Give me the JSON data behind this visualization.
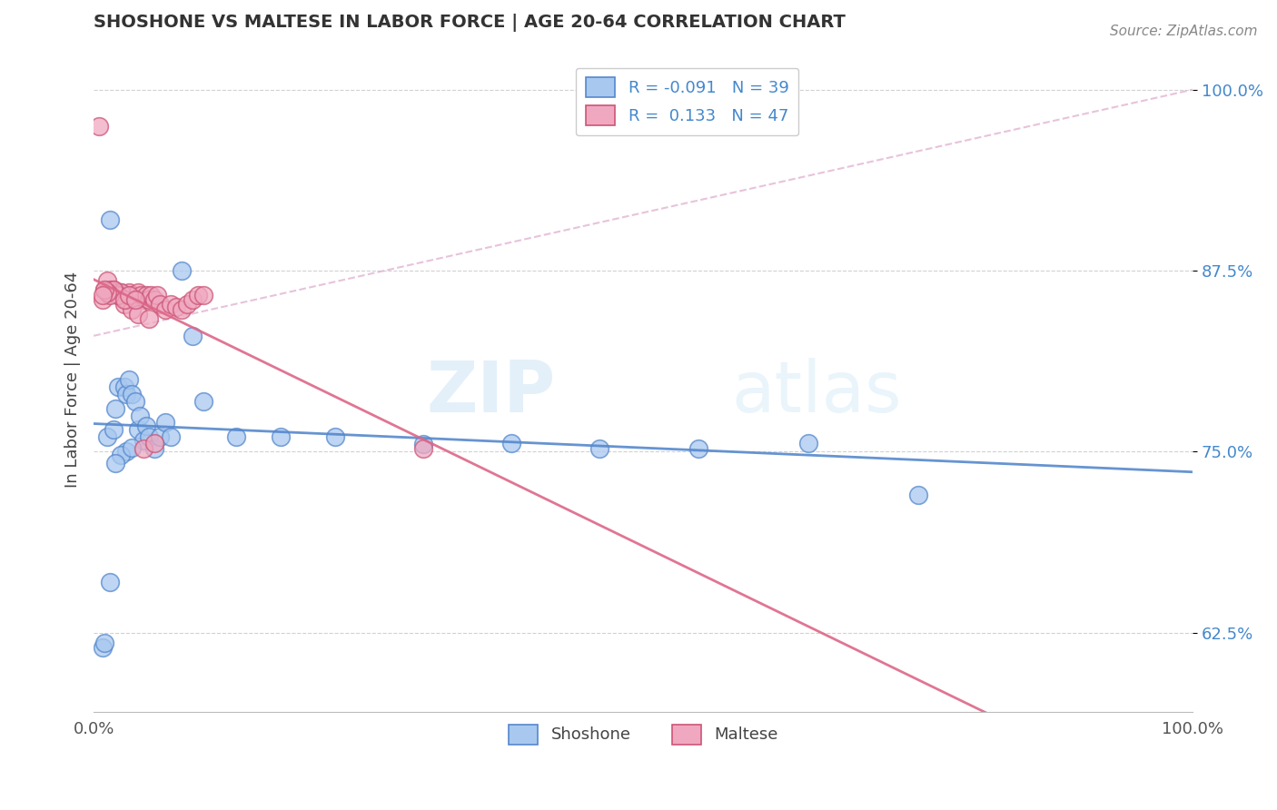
{
  "title": "SHOSHONE VS MALTESE IN LABOR FORCE | AGE 20-64 CORRELATION CHART",
  "source": "Source: ZipAtlas.com",
  "ylabel": "In Labor Force | Age 20-64",
  "xlim": [
    0.0,
    1.0
  ],
  "ylim": [
    0.57,
    1.03
  ],
  "yticks": [
    0.625,
    0.75,
    0.875,
    1.0
  ],
  "ytick_labels": [
    "62.5%",
    "75.0%",
    "87.5%",
    "100.0%"
  ],
  "xticks": [
    0.0,
    0.25,
    0.5,
    0.75,
    1.0
  ],
  "xtick_labels_show": [
    "0.0%",
    "100.0%"
  ],
  "watermark_zip": "ZIP",
  "watermark_atlas": "atlas",
  "shoshone_color": "#a8c8f0",
  "maltese_color": "#f0a8c0",
  "shoshone_edge_color": "#5588cc",
  "maltese_edge_color": "#cc5577",
  "shoshone_line_color": "#5588cc",
  "maltese_line_color": "#dd6688",
  "shoshone_R": -0.091,
  "shoshone_N": 39,
  "maltese_R": 0.133,
  "maltese_N": 47,
  "diagonal_color": "#ddaabb",
  "grid_color": "#cccccc",
  "shoshone_x": [
    0.008,
    0.012,
    0.015,
    0.018,
    0.02,
    0.022,
    0.025,
    0.028,
    0.03,
    0.032,
    0.035,
    0.038,
    0.04,
    0.042,
    0.045,
    0.048,
    0.05,
    0.055,
    0.06,
    0.065,
    0.07,
    0.08,
    0.09,
    0.1,
    0.13,
    0.17,
    0.22,
    0.3,
    0.38,
    0.46,
    0.55,
    0.65,
    0.75,
    0.03,
    0.025,
    0.02,
    0.015,
    0.01,
    0.035
  ],
  "shoshone_y": [
    0.615,
    0.76,
    0.91,
    0.765,
    0.78,
    0.795,
    0.86,
    0.795,
    0.79,
    0.8,
    0.79,
    0.785,
    0.765,
    0.775,
    0.758,
    0.768,
    0.76,
    0.752,
    0.76,
    0.77,
    0.76,
    0.875,
    0.83,
    0.785,
    0.76,
    0.76,
    0.76,
    0.755,
    0.756,
    0.752,
    0.752,
    0.756,
    0.72,
    0.75,
    0.748,
    0.742,
    0.66,
    0.618,
    0.753
  ],
  "maltese_x": [
    0.005,
    0.008,
    0.01,
    0.012,
    0.015,
    0.018,
    0.02,
    0.022,
    0.025,
    0.028,
    0.03,
    0.032,
    0.035,
    0.038,
    0.04,
    0.043,
    0.045,
    0.048,
    0.05,
    0.052,
    0.055,
    0.058,
    0.06,
    0.065,
    0.07,
    0.075,
    0.08,
    0.085,
    0.09,
    0.095,
    0.1,
    0.035,
    0.04,
    0.05,
    0.025,
    0.022,
    0.018,
    0.015,
    0.012,
    0.01,
    0.008,
    0.028,
    0.032,
    0.038,
    0.045,
    0.055,
    0.3
  ],
  "maltese_y": [
    0.975,
    0.855,
    0.862,
    0.868,
    0.862,
    0.862,
    0.86,
    0.858,
    0.858,
    0.852,
    0.855,
    0.86,
    0.858,
    0.855,
    0.86,
    0.858,
    0.855,
    0.858,
    0.855,
    0.858,
    0.855,
    0.858,
    0.852,
    0.848,
    0.852,
    0.85,
    0.848,
    0.852,
    0.855,
    0.858,
    0.858,
    0.848,
    0.845,
    0.842,
    0.86,
    0.858,
    0.862,
    0.858,
    0.86,
    0.862,
    0.858,
    0.855,
    0.858,
    0.855,
    0.752,
    0.756,
    0.752
  ]
}
